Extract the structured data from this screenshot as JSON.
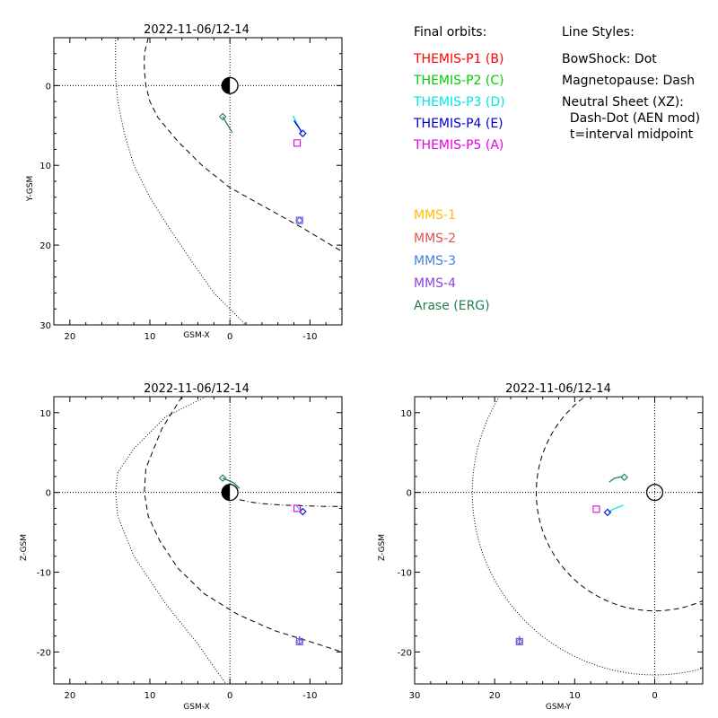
{
  "figure": {
    "legend_title": "Final orbits:",
    "line_styles_title": "Line Styles:",
    "spacecraft": [
      {
        "label": "THEMIS-P1 (B)",
        "color": "#ff0000"
      },
      {
        "label": "THEMIS-P2 (C)",
        "color": "#00cc00"
      },
      {
        "label": "THEMIS-P3 (D)",
        "color": "#00e5e5"
      },
      {
        "label": "THEMIS-P4 (E)",
        "color": "#0000cc"
      },
      {
        "label": "THEMIS-P5 (A)",
        "color": "#e600e6"
      },
      {
        "label": "MMS-1",
        "color": "#ffc000"
      },
      {
        "label": "MMS-2",
        "color": "#e05050"
      },
      {
        "label": "MMS-3",
        "color": "#4080e0"
      },
      {
        "label": "MMS-4",
        "color": "#9040e0"
      },
      {
        "label": "Arase (ERG)",
        "color": "#208050"
      }
    ],
    "line_styles": [
      "BowShock: Dot",
      "Magnetopause: Dash",
      "Neutral Sheet (XZ):",
      "  Dash-Dot (AEN mod)",
      "  t=interval midpoint"
    ]
  },
  "chart_data": [
    {
      "type": "scatter",
      "title": "2022-11-06/12-14",
      "xlabel": "GSM-X",
      "ylabel": "Y-GSM",
      "xlim": [
        22,
        -14
      ],
      "ylim": [
        30,
        -6
      ],
      "x_ticks": [
        20,
        10,
        0,
        -10
      ],
      "y_ticks": [
        0,
        10,
        20,
        30
      ],
      "bow_shock": {
        "x": [
          14.3,
          14.3,
          14.0,
          13.2,
          12.0,
          10.0,
          7.5,
          4.8,
          2.0,
          -1.0,
          -3.0
        ],
        "y": [
          -6,
          -1,
          2,
          6,
          10,
          14,
          18,
          22,
          26,
          29,
          31
        ]
      },
      "magnetopause": {
        "x": [
          10.2,
          10.7,
          10.7,
          10.5,
          10.0,
          9.0,
          6.5,
          3.5,
          0,
          -4.5,
          -9,
          -14
        ],
        "y": [
          -6,
          -4,
          -2,
          0,
          2,
          4,
          7,
          10,
          12.8,
          15.3,
          17.8,
          20.8
        ]
      },
      "tracks": [
        {
          "name": "Arase (ERG)",
          "color": "#208050",
          "x": [
            0.9,
            0.3,
            -0.3
          ],
          "y": [
            3.9,
            4.9,
            5.9
          ]
        },
        {
          "name": "THEMIS-P3 (D)",
          "color": "#00e5e5",
          "x": [
            -7.9,
            -8.5,
            -9.0
          ],
          "y": [
            3.8,
            5.0,
            6.0
          ]
        },
        {
          "name": "THEMIS-P4 (E)",
          "color": "#0000cc",
          "x": [
            -8.0,
            -8.5,
            -8.9
          ],
          "y": [
            4.4,
            5.1,
            5.7
          ]
        }
      ],
      "markers": [
        {
          "name": "Arase (ERG)",
          "symbol": "diamond",
          "color": "#208050",
          "x": 0.9,
          "y": 3.9
        },
        {
          "name": "THEMIS-P4 (E)",
          "symbol": "diamond",
          "color": "#0000cc",
          "x": -9.1,
          "y": 6.0
        },
        {
          "name": "THEMIS-P5 (A)",
          "symbol": "square",
          "color": "#e600e6",
          "x": -8.4,
          "y": 7.2
        },
        {
          "name": "MMS-4",
          "symbol": "square",
          "color": "#9040e0",
          "x": -8.7,
          "y": 16.9
        },
        {
          "name": "MMS-4",
          "symbol": "diamond",
          "color": "#9040e0",
          "x": -8.7,
          "y": 16.9
        },
        {
          "name": "MMS-3",
          "symbol": "diamond",
          "color": "#4080e0",
          "x": -8.7,
          "y": 16.9
        }
      ]
    },
    {
      "type": "scatter",
      "title": "2022-11-06/12-14",
      "xlabel": "GSM-X",
      "ylabel": "Z-GSM",
      "xlim": [
        22,
        -14
      ],
      "ylim": [
        -24,
        12
      ],
      "x_ticks": [
        20,
        10,
        0,
        -10
      ],
      "y_ticks": [
        10,
        0,
        -10,
        -20
      ],
      "bow_shock": {
        "x": [
          3.0,
          8.0,
          12.0,
          14.0,
          14.3,
          14.0,
          12.0,
          8.0,
          4.0,
          0.5
        ],
        "y": [
          12,
          9.5,
          5.5,
          2.5,
          0,
          -3,
          -8,
          -14,
          -19,
          -24
        ]
      },
      "magnetopause": {
        "x": [
          6.0,
          8.5,
          10.5,
          10.7,
          10.2,
          8.8,
          6.5,
          3.2,
          -1.0,
          -5.5,
          -10.0,
          -14.0
        ],
        "y": [
          12,
          8,
          3,
          0,
          -3,
          -6,
          -9.5,
          -12.7,
          -15.3,
          -17.3,
          -18.7,
          -20
        ]
      },
      "neutral_sheet": {
        "x": [
          -1.2,
          -2.5,
          -4.0,
          -6.0,
          -8.0,
          -10.0,
          -12.0,
          -14.0
        ],
        "y": [
          -0.9,
          -1.2,
          -1.4,
          -1.55,
          -1.65,
          -1.7,
          -1.75,
          -1.75
        ]
      },
      "tracks": [
        {
          "name": "Arase (ERG)",
          "color": "#208050",
          "x": [
            0.9,
            -0.5,
            -1.2
          ],
          "y": [
            1.8,
            1.2,
            0.5
          ]
        },
        {
          "name": "THEMIS-P3 (D)",
          "color": "#00e5e5",
          "x": [
            -8.3,
            -8.7,
            -9.0
          ],
          "y": [
            -1.7,
            -2.1,
            -2.4
          ]
        },
        {
          "name": "MMS-4",
          "color": "#9040e0",
          "x": [
            -8.7,
            -8.7
          ],
          "y": [
            -18.0,
            -19.0
          ]
        }
      ],
      "markers": [
        {
          "name": "Arase (ERG)",
          "symbol": "diamond",
          "color": "#208050",
          "x": 0.9,
          "y": 1.8
        },
        {
          "name": "THEMIS-P4 (E)",
          "symbol": "diamond",
          "color": "#0000cc",
          "x": -9.1,
          "y": -2.4
        },
        {
          "name": "THEMIS-P5 (A)",
          "symbol": "square",
          "color": "#e600e6",
          "x": -8.4,
          "y": -2.0
        },
        {
          "name": "MMS-4",
          "symbol": "square",
          "color": "#9040e0",
          "x": -8.7,
          "y": -18.7
        },
        {
          "name": "MMS-4",
          "symbol": "diamond",
          "color": "#9040e0",
          "x": -8.7,
          "y": -18.7
        },
        {
          "name": "MMS-3",
          "symbol": "diamond",
          "color": "#4080e0",
          "x": -8.7,
          "y": -18.7
        }
      ]
    },
    {
      "type": "scatter",
      "title": "2022-11-06/12-14",
      "xlabel": "GSM-Y",
      "ylabel": "Z-GSM",
      "xlim": [
        30,
        -6
      ],
      "ylim": [
        -24,
        12
      ],
      "x_ticks": [
        30,
        20,
        10,
        0
      ],
      "y_ticks": [
        10,
        0,
        -10,
        -20
      ],
      "bow_shock": {
        "center": [
          0,
          0
        ],
        "radius": 22.8
      },
      "magnetopause": {
        "center": [
          0,
          0
        ],
        "radius": 14.8
      },
      "tracks": [
        {
          "name": "Arase (ERG)",
          "color": "#208050",
          "x": [
            5.7,
            5.0,
            4.0
          ],
          "y": [
            1.3,
            1.8,
            2.0
          ]
        },
        {
          "name": "THEMIS-P3 (D)",
          "color": "#00e5e5",
          "x": [
            5.8,
            5.2,
            3.9
          ],
          "y": [
            -2.5,
            -2.1,
            -1.6
          ]
        },
        {
          "name": "MMS-4",
          "color": "#9040e0",
          "x": [
            16.9,
            16.9
          ],
          "y": [
            -18.0,
            -19.0
          ]
        }
      ],
      "markers": [
        {
          "name": "Arase (ERG)",
          "symbol": "diamond",
          "color": "#208050",
          "x": 3.8,
          "y": 1.9
        },
        {
          "name": "THEMIS-P4 (E)",
          "symbol": "diamond",
          "color": "#0000cc",
          "x": 5.9,
          "y": -2.5
        },
        {
          "name": "THEMIS-P5 (A)",
          "symbol": "square",
          "color": "#e600e6",
          "x": 7.3,
          "y": -2.1
        },
        {
          "name": "MMS-4",
          "symbol": "square",
          "color": "#9040e0",
          "x": 16.9,
          "y": -18.7
        },
        {
          "name": "MMS-4",
          "symbol": "diamond",
          "color": "#9040e0",
          "x": 16.9,
          "y": -18.7
        },
        {
          "name": "MMS-3",
          "symbol": "diamond",
          "color": "#4080e0",
          "x": 16.9,
          "y": -18.7
        }
      ]
    }
  ]
}
